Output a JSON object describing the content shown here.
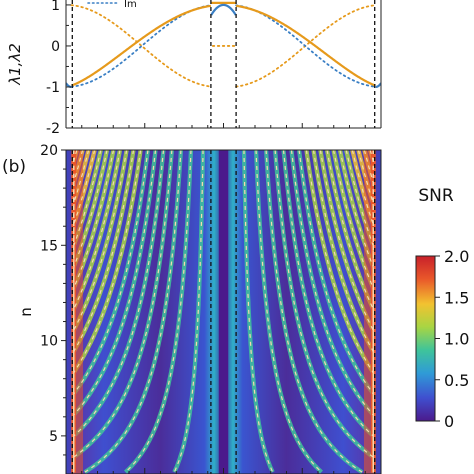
{
  "chart_data": [
    {
      "panel_label": "",
      "type": "line",
      "ylabel": "λ1,λ2",
      "ylim": [
        -2,
        1.12
      ],
      "xlim": [
        0,
        1
      ],
      "y_ticks": [
        "-2",
        "-1",
        "0",
        "1"
      ],
      "legend": [
        "Im"
      ],
      "series": [
        {
          "name": "",
          "color": "#e69a1c",
          "style": "solid",
          "description": "real eigenvalue branch rising to 1 near the center"
        },
        {
          "name": "",
          "color": "#e69a1c",
          "style": "dotted",
          "description": "imaginary part of orange branch"
        },
        {
          "name": "",
          "color": "#3a7fc4",
          "style": "dotted",
          "description": "imaginary part of blue branch"
        },
        {
          "name": "",
          "color": "#3a7fc4",
          "style": "solid",
          "description": "short real segments near band edges"
        }
      ],
      "vlines": [
        0.02,
        0.46,
        0.54,
        0.98
      ],
      "critical_points": [
        0.017,
        0.461,
        0.539,
        0.983
      ],
      "grid": false
    },
    {
      "panel_label": "(b)",
      "type": "heatmap",
      "ylabel": "n",
      "ylim": [
        3,
        20
      ],
      "y_ticks": [
        "5",
        "10",
        "15",
        "20"
      ],
      "colorbar": {
        "title": "SNR",
        "min": 0,
        "max": 2.0,
        "ticks": [
          "0",
          "0.5",
          "1.0",
          "1.5",
          "2.0"
        ],
        "colors": [
          "#4b1a8c",
          "#3f4fcf",
          "#2f9bd7",
          "#3fc49a",
          "#a8d543",
          "#f2c230",
          "#e9582a",
          "#c8202a"
        ]
      },
      "vlines": [
        0.02,
        0.46,
        0.54,
        0.98
      ],
      "dashed_curve_color": "#f4dab0",
      "grid": false
    }
  ]
}
